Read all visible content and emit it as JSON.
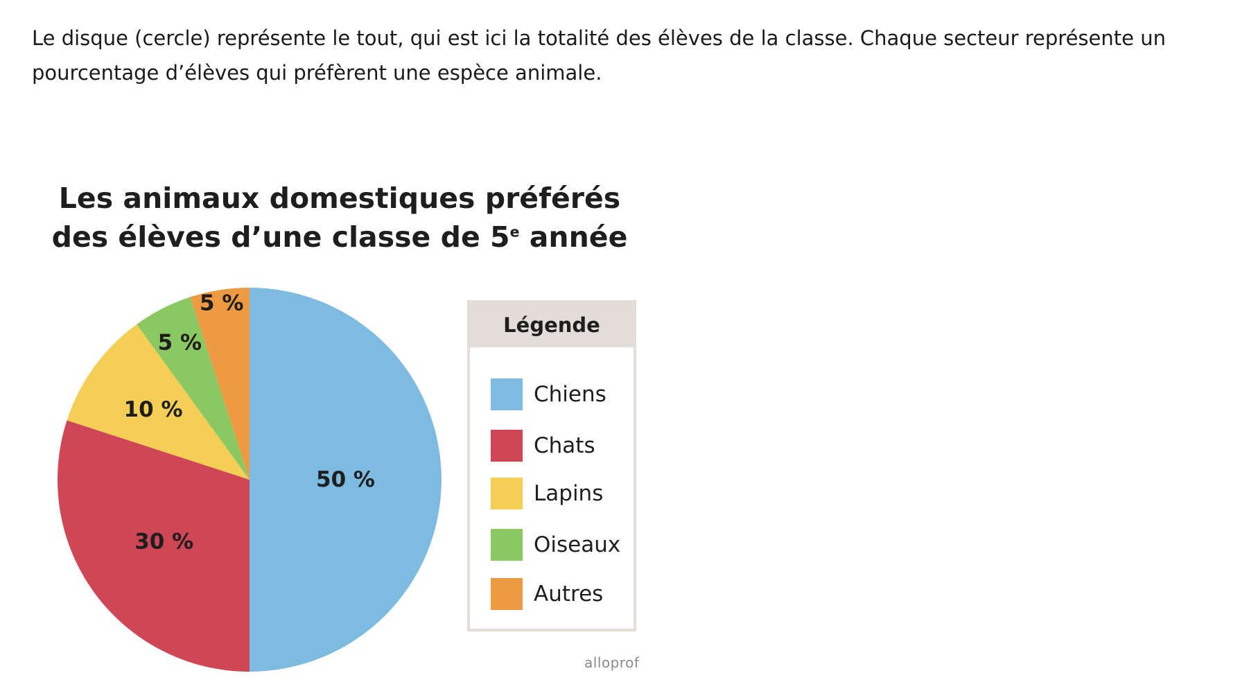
{
  "intro_text": "Le disque (cercle) représente le tout, qui est ici la totalité des élèves de la classe. Chaque secteur représente un pourcentage d’élèves qui préfèrent une espèce animale.",
  "chart_data": {
    "type": "pie",
    "title": "Les animaux domestiques préférés des élèves d’une classe de 5e année",
    "title_line1": "Les animaux domestiques préférés",
    "title_line2_before": "des élèves d’une classe de 5",
    "title_superscript": "e",
    "title_line2_after": " année",
    "slices": [
      {
        "label": "Chiens",
        "value": 50,
        "display": "50 %",
        "color": "#7dbbe1"
      },
      {
        "label": "Chats",
        "value": 30,
        "display": "30 %",
        "color": "#cf4657"
      },
      {
        "label": "Lapins",
        "value": 10,
        "display": "10 %",
        "color": "#f5cf55"
      },
      {
        "label": "Oiseaux",
        "value": 5,
        "display": "5 %",
        "color": "#8cc862"
      },
      {
        "label": "Autres",
        "value": 5,
        "display": "5 %",
        "color": "#ee9a42"
      }
    ],
    "legend_title": "Légende",
    "legend_position": "right"
  },
  "watermark": "alloprof"
}
